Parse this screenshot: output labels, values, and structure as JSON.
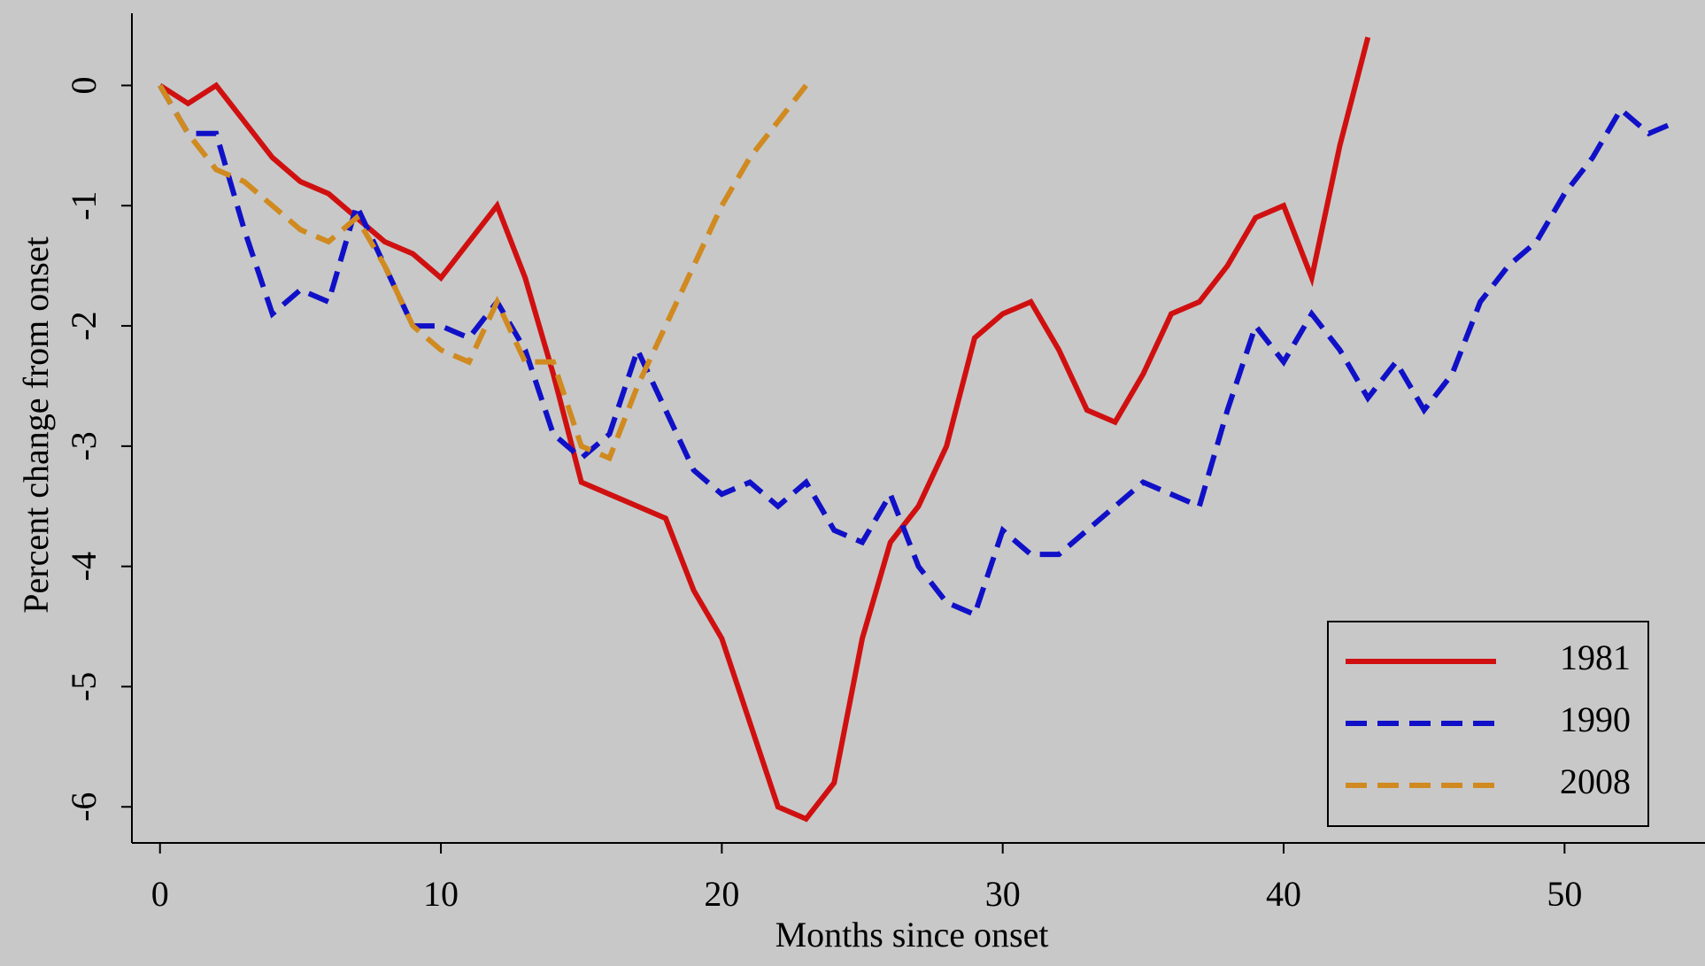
{
  "chart_data": {
    "type": "line",
    "x_label": "Months since onset",
    "y_label": "Percent change from onset",
    "xlim": [
      -1,
      55
    ],
    "xticks": [
      0,
      10,
      20,
      30,
      40,
      50
    ],
    "ylim": [
      -6.3,
      0.6
    ],
    "yticks": [
      -6,
      -5,
      -4,
      -3,
      -2,
      -1,
      0
    ],
    "legend": "bottom-right",
    "series": [
      {
        "name": "1981",
        "color": "#d01010",
        "dash": false,
        "x": [
          0,
          1,
          2,
          3,
          4,
          5,
          6,
          7,
          8,
          9,
          10,
          11,
          12,
          13,
          14,
          15,
          16,
          17,
          18,
          19,
          20,
          21,
          22,
          23,
          24,
          25,
          26,
          27,
          28,
          29,
          30,
          31,
          32,
          33,
          34,
          35,
          36,
          37,
          38,
          39,
          40,
          41,
          42,
          43
        ],
        "values": [
          0,
          -0.15,
          0,
          -0.3,
          -0.6,
          -0.8,
          -0.9,
          -1.1,
          -1.3,
          -1.4,
          -1.6,
          -1.3,
          -1.0,
          -1.6,
          -2.4,
          -3.3,
          -3.4,
          -3.5,
          -3.6,
          -4.2,
          -4.6,
          -5.3,
          -6.0,
          -6.1,
          -5.8,
          -4.6,
          -3.8,
          -3.5,
          -3.0,
          -2.1,
          -1.9,
          -1.8,
          -2.2,
          -2.7,
          -2.8,
          -2.4,
          -1.9,
          -1.8,
          -1.5,
          -1.1,
          -1.0,
          -1.6,
          -0.5,
          0.4
        ]
      },
      {
        "name": "1990",
        "color": "#1010c8",
        "dash": true,
        "x": [
          0,
          1,
          2,
          3,
          4,
          5,
          6,
          7,
          8,
          9,
          10,
          11,
          12,
          13,
          14,
          15,
          16,
          17,
          18,
          19,
          20,
          21,
          22,
          23,
          24,
          25,
          26,
          27,
          28,
          29,
          30,
          31,
          32,
          33,
          34,
          35,
          36,
          37,
          38,
          39,
          40,
          41,
          42,
          43,
          44,
          45,
          46,
          47,
          48,
          49,
          50,
          51,
          52,
          53,
          54
        ],
        "values": [
          0,
          -0.4,
          -0.4,
          -1.2,
          -1.9,
          -1.7,
          -1.8,
          -1.0,
          -1.5,
          -2.0,
          -2.0,
          -2.1,
          -1.8,
          -2.2,
          -2.9,
          -3.1,
          -2.9,
          -2.2,
          -2.7,
          -3.2,
          -3.4,
          -3.3,
          -3.5,
          -3.3,
          -3.7,
          -3.8,
          -3.4,
          -4.0,
          -4.3,
          -4.4,
          -3.7,
          -3.9,
          -3.9,
          -3.7,
          -3.5,
          -3.3,
          -3.4,
          -3.5,
          -2.7,
          -2.0,
          -2.3,
          -1.9,
          -2.2,
          -2.6,
          -2.3,
          -2.7,
          -2.4,
          -1.8,
          -1.5,
          -1.3,
          -0.9,
          -0.6,
          -0.2,
          -0.4,
          -0.3
        ]
      },
      {
        "name": "2008",
        "color": "#d08a20",
        "dash": true,
        "x": [
          0,
          1,
          2,
          3,
          4,
          5,
          6,
          7,
          8,
          9,
          10,
          11,
          12,
          13,
          14,
          15,
          16,
          17,
          18,
          19,
          20,
          21,
          22,
          23
        ],
        "values": [
          0,
          -0.4,
          -0.7,
          -0.8,
          -1.0,
          -1.2,
          -1.3,
          -1.1,
          -1.5,
          -2.0,
          -2.2,
          -2.3,
          -1.8,
          -2.3,
          -2.3,
          -3.0,
          -3.1,
          -2.5,
          -2.0,
          -1.5,
          -1.0,
          -0.6,
          -0.3,
          0
        ]
      }
    ]
  }
}
